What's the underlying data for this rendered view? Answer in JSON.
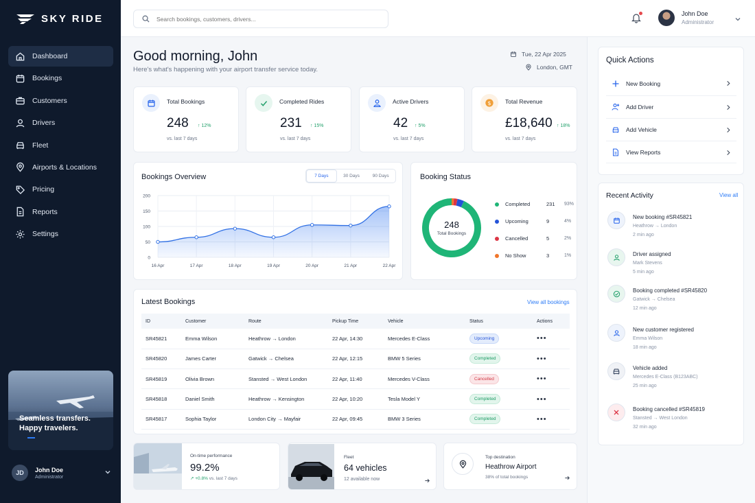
{
  "brand": {
    "name": "SKY RIDE"
  },
  "sidebar": {
    "items": [
      {
        "label": "Dashboard",
        "icon": "home-icon",
        "active": true
      },
      {
        "label": "Bookings",
        "icon": "calendar-icon"
      },
      {
        "label": "Customers",
        "icon": "briefcase-icon"
      },
      {
        "label": "Drivers",
        "icon": "user-icon"
      },
      {
        "label": "Fleet",
        "icon": "car-icon"
      },
      {
        "label": "Airports & Locations",
        "icon": "location-pin-icon"
      },
      {
        "label": "Pricing",
        "icon": "price-tag-icon"
      },
      {
        "label": "Reports",
        "icon": "document-icon"
      },
      {
        "label": "Settings",
        "icon": "gear-icon"
      }
    ],
    "promo": {
      "line1": "Seamless transfers.",
      "line2": "Happy travelers."
    },
    "user": {
      "initials": "JD",
      "name": "John Doe",
      "role": "Administrator"
    }
  },
  "header": {
    "search_placeholder": "Search bookings, customers, drivers...",
    "user": {
      "name": "John Doe",
      "role": "Administrator"
    }
  },
  "greeting": {
    "title": "Good morning, John",
    "subtitle": "Here's what's happening with your airport transfer service today.",
    "date": "Tue, 22 Apr 2025",
    "location": "London, GMT"
  },
  "stats": [
    {
      "label": "Total Bookings",
      "value": "248",
      "delta": "12%",
      "foot": "vs. last 7 days",
      "icon": "calendar-icon",
      "color": "#2563eb",
      "bg": "#eaf1fd"
    },
    {
      "label": "Completed Rides",
      "value": "231",
      "delta": "15%",
      "foot": "vs. last 7 days",
      "icon": "check-icon",
      "color": "#22a06b",
      "bg": "#e6f6ef"
    },
    {
      "label": "Active Drivers",
      "value": "42",
      "delta": "5%",
      "foot": "vs. last 7 days",
      "icon": "driver-icon",
      "color": "#2563eb",
      "bg": "#eaf1fd"
    },
    {
      "label": "Total Revenue",
      "value": "£18,640",
      "delta": "18%",
      "foot": "vs. last 7 days",
      "icon": "coin-icon",
      "color": "#e58a1f",
      "bg": "#fdf2e4"
    }
  ],
  "overview": {
    "title": "Bookings Overview",
    "tabs": [
      "7 Days",
      "30 Days",
      "90 Days"
    ],
    "active_tab": "7 Days"
  },
  "chart_data": {
    "type": "area",
    "x": [
      "16 Apr",
      "17 Apr",
      "18 Apr",
      "19 Apr",
      "20 Apr",
      "21 Apr",
      "22 Apr"
    ],
    "values": [
      50,
      65,
      93,
      65,
      105,
      103,
      165
    ],
    "ylim": [
      0,
      200
    ],
    "yticks": [
      0,
      50,
      100,
      150,
      200
    ],
    "grid": true,
    "color": "#2f6fe4"
  },
  "booking_status": {
    "title": "Booking Status",
    "total": "248",
    "total_label": "Total Bookings",
    "items": [
      {
        "label": "Completed",
        "count": "231",
        "pct": "93%",
        "value": 231,
        "color": "#1fb577"
      },
      {
        "label": "Upcoming",
        "count": "9",
        "pct": "4%",
        "value": 9,
        "color": "#2453d8"
      },
      {
        "label": "Cancelled",
        "count": "5",
        "pct": "2%",
        "value": 5,
        "color": "#dc3545"
      },
      {
        "label": "No Show",
        "count": "3",
        "pct": "1%",
        "value": 3,
        "color": "#f0762b"
      }
    ]
  },
  "latest": {
    "title": "Latest Bookings",
    "view_all": "View all bookings",
    "columns": [
      "ID",
      "Customer",
      "Route",
      "Pickup Time",
      "Vehicle",
      "Status",
      "Actions"
    ],
    "rows": [
      {
        "id": "SR45821",
        "customer": "Emma Wilson",
        "from": "Heathrow",
        "to": "London",
        "pickup": "22 Apr, 14:30",
        "vehicle": "Mercedes E-Class",
        "status": "Upcoming"
      },
      {
        "id": "SR45820",
        "customer": "James Carter",
        "from": "Gatwick",
        "to": "Chelsea",
        "pickup": "22 Apr, 12:15",
        "vehicle": "BMW 5 Series",
        "status": "Completed"
      },
      {
        "id": "SR45819",
        "customer": "Olivia Brown",
        "from": "Stansted",
        "to": "West London",
        "pickup": "22 Apr, 11:40",
        "vehicle": "Mercedes V-Class",
        "status": "Cancelled"
      },
      {
        "id": "SR45818",
        "customer": "Daniel Smith",
        "from": "Heathrow",
        "to": "Kensington",
        "pickup": "22 Apr, 10:20",
        "vehicle": "Tesla Model Y",
        "status": "Completed"
      },
      {
        "id": "SR45817",
        "customer": "Sophia Taylor",
        "from": "London City",
        "to": "Mayfair",
        "pickup": "22 Apr, 09:45",
        "vehicle": "BMW 3 Series",
        "status": "Completed"
      }
    ]
  },
  "bottom_cards": {
    "ontime": {
      "label": "On-time performance",
      "value": "99.2%",
      "delta": "+0.8%",
      "foot": "vs. last 7 days"
    },
    "fleet": {
      "label": "Fleet",
      "value": "64 vehicles",
      "foot": "12 available now"
    },
    "destination": {
      "label": "Top destination",
      "value": "Heathrow Airport",
      "foot": "38% of total bookings"
    }
  },
  "quick_actions": {
    "title": "Quick Actions",
    "items": [
      {
        "label": "New Booking",
        "icon": "plus-icon"
      },
      {
        "label": "Add Driver",
        "icon": "user-plus-icon"
      },
      {
        "label": "Add Vehicle",
        "icon": "car-icon"
      },
      {
        "label": "View Reports",
        "icon": "document-icon"
      }
    ]
  },
  "activity": {
    "title": "Recent Activity",
    "view_all": "View all",
    "items": [
      {
        "title": "New booking #SR45821",
        "sub": "Heathrow → London",
        "time": "2 min ago",
        "icon": "calendar-icon",
        "color": "#2563eb",
        "bg": "#eef3fc"
      },
      {
        "title": "Driver assigned",
        "sub": "Mark Stevens",
        "time": "5 min ago",
        "icon": "user-icon",
        "color": "#22a06b",
        "bg": "#e8f6ef"
      },
      {
        "title": "Booking completed #SR45820",
        "sub": "Gatwick → Chelsea",
        "time": "12 min ago",
        "icon": "check-circle-icon",
        "color": "#22a06b",
        "bg": "#e8f6ef"
      },
      {
        "title": "New customer registered",
        "sub": "Emma Wilson",
        "time": "18 min ago",
        "icon": "user-icon",
        "color": "#2563eb",
        "bg": "#eef3fc"
      },
      {
        "title": "Vehicle added",
        "sub": "Mercedes E-Class (B123ABC)",
        "time": "25 min ago",
        "icon": "car-icon",
        "color": "#3b4a63",
        "bg": "#f0f2f6"
      },
      {
        "title": "Booking cancelled #SR45819",
        "sub": "Stansted → West London",
        "time": "32 min ago",
        "icon": "close-icon",
        "color": "#dc3545",
        "bg": "#fdecee"
      }
    ]
  }
}
